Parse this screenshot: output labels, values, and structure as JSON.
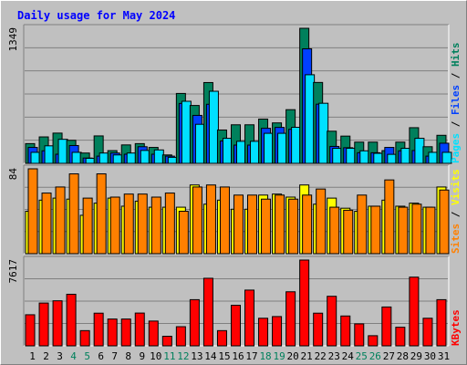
{
  "chart_data": {
    "type": "bar",
    "title": "Daily usage for May 2024",
    "categories": [
      "1",
      "2",
      "3",
      "4",
      "5",
      "6",
      "7",
      "8",
      "9",
      "10",
      "11",
      "12",
      "13",
      "14",
      "15",
      "16",
      "17",
      "18",
      "19",
      "20",
      "21",
      "22",
      "23",
      "24",
      "25",
      "26",
      "27",
      "28",
      "29",
      "30",
      "31"
    ],
    "weekend_days": [
      "4",
      "5",
      "11",
      "12",
      "18",
      "19",
      "25",
      "26"
    ],
    "panels": [
      {
        "max_label": "1349",
        "ylim": [
          0,
          1349
        ],
        "legend": [
          {
            "name": "Pages",
            "color": "#00e0ff"
          },
          {
            "name": "Files",
            "color": "#0040ff"
          },
          {
            "name": "Hits",
            "color": "#00805c"
          }
        ],
        "series": [
          {
            "name": "Hits",
            "color": "#00805c",
            "values": [
              197,
              264,
              302,
              230,
              103,
              274,
              127,
              184,
              197,
              159,
              84,
              698,
              578,
              807,
              333,
              385,
              385,
              442,
              404,
              536,
              1349,
              808,
              321,
              272,
              212,
              212,
              127,
              212,
              356,
              166,
              280
            ]
          },
          {
            "name": "Files",
            "color": "#0040ff",
            "values": [
              159,
              125,
              91,
              178,
              53,
              72,
              103,
              91,
              166,
              91,
              72,
              598,
              479,
              590,
              223,
              182,
              182,
              350,
              359,
              340,
              1144,
              591,
              169,
              156,
              106,
              106,
              159,
              125,
              128,
              72,
              201
            ]
          },
          {
            "name": "Pages",
            "color": "#00e0ff",
            "values": [
              110,
              175,
              240,
              110,
              50,
              103,
              84,
              103,
              129,
              134,
              60,
              620,
              390,
              720,
              250,
              220,
              220,
              300,
              300,
              360,
              885,
              600,
              150,
              150,
              125,
              100,
              90,
              150,
              250,
              110,
              110
            ]
          }
        ]
      },
      {
        "max_label": "84",
        "ylim": [
          0,
          84
        ],
        "legend": [
          {
            "name": "Sites",
            "color": "#ff8000"
          },
          {
            "name": "Visits",
            "color": "#ffff00"
          }
        ],
        "series": [
          {
            "name": "Visits",
            "color": "#ffff00",
            "values": [
              42,
              53,
              55,
              54,
              38,
              50,
              55,
              47,
              52,
              46,
              46,
              46,
              68,
              49,
              53,
              44,
              44,
              58,
              59,
              56,
              68,
              49,
              55,
              45,
              42,
              47,
              53,
              47,
              50,
              46,
              66
            ]
          },
          {
            "name": "Sites",
            "color": "#ff8000",
            "values": [
              84,
              60,
              66,
              79,
              55,
              79,
              56,
              59,
              59,
              56,
              60,
              42,
              66,
              68,
              66,
              58,
              58,
              54,
              58,
              54,
              58,
              64,
              46,
              43,
              58,
              47,
              73,
              46,
              49,
              46,
              63
            ]
          }
        ]
      },
      {
        "max_label": "7617",
        "ylim": [
          0,
          7617
        ],
        "legend": [
          {
            "name": "KBytes",
            "color": "#ff0000"
          }
        ],
        "series": [
          {
            "name": "KBytes",
            "color": "#ff0000",
            "values": [
              2760,
              3800,
              4000,
              4580,
              1350,
              2900,
              2380,
              2380,
              2910,
              2200,
              850,
              1700,
              4100,
              6000,
              1350,
              3600,
              4950,
              2450,
              2600,
              4800,
              7617,
              2900,
              4400,
              2650,
              1950,
              900,
              3450,
              1650,
              6100,
              2450,
              4100
            ]
          }
        ]
      }
    ],
    "grid": true
  }
}
